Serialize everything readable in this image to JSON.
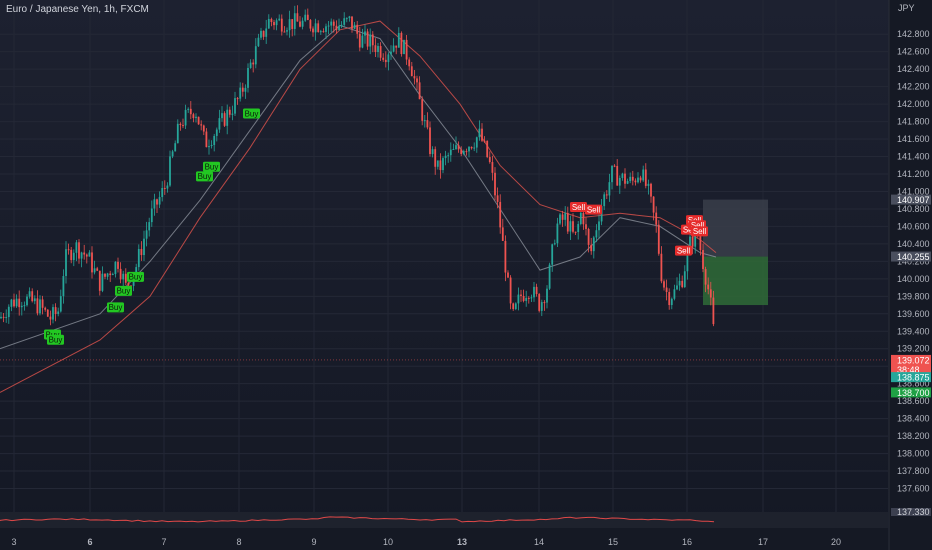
{
  "title": "Euro / Japanese Yen, 1h, FXCM",
  "currency": "JPY",
  "colors": {
    "up": "#26a69a",
    "down": "#ef5350",
    "ma_fast": "#9aa0aa",
    "ma_slow": "#d4504a",
    "buy_bg": "#22c722",
    "sell_bg": "#e52b2b",
    "target_zone": "#2f6b37",
    "stop_zone": "#3a3e4a"
  },
  "chart_data": {
    "type": "candlestick",
    "ylim": [
      137.4,
      143.1
    ],
    "y_ticks": [
      142.8,
      142.6,
      142.4,
      142.2,
      142.0,
      141.8,
      141.6,
      141.4,
      141.2,
      141.0,
      140.8,
      140.6,
      140.4,
      140.2,
      140.0,
      139.8,
      139.6,
      139.4,
      139.2,
      139.0,
      138.8,
      138.6,
      138.4,
      138.2,
      138.0,
      137.8,
      137.6
    ],
    "x_ticks": [
      {
        "label": "3",
        "bold": false
      },
      {
        "label": "6",
        "bold": true
      },
      {
        "label": "7",
        "bold": false
      },
      {
        "label": "8",
        "bold": false
      },
      {
        "label": "9",
        "bold": false
      },
      {
        "label": "10",
        "bold": false
      },
      {
        "label": "13",
        "bold": true
      },
      {
        "label": "14",
        "bold": false
      },
      {
        "label": "15",
        "bold": false
      },
      {
        "label": "16",
        "bold": false
      },
      {
        "label": "17",
        "bold": false
      },
      {
        "label": "20",
        "bold": false
      }
    ],
    "path": [
      [
        0,
        139.55
      ],
      [
        10,
        139.72
      ],
      [
        20,
        139.78
      ],
      [
        30,
        139.75
      ],
      [
        40,
        139.68
      ],
      [
        50,
        139.55
      ],
      [
        58,
        139.62
      ],
      [
        65,
        140.22
      ],
      [
        75,
        140.38
      ],
      [
        88,
        140.25
      ],
      [
        100,
        139.95
      ],
      [
        110,
        140.1
      ],
      [
        118,
        140.2
      ],
      [
        126,
        139.9
      ],
      [
        135,
        140.1
      ],
      [
        150,
        140.7
      ],
      [
        165,
        141.05
      ],
      [
        180,
        141.78
      ],
      [
        195,
        141.95
      ],
      [
        205,
        141.55
      ],
      [
        215,
        141.68
      ],
      [
        228,
        141.9
      ],
      [
        240,
        142.08
      ],
      [
        252,
        142.5
      ],
      [
        268,
        142.95
      ],
      [
        340,
        142.9
      ],
      [
        350,
        142.95
      ],
      [
        360,
        142.75
      ],
      [
        372,
        142.7
      ],
      [
        385,
        142.58
      ],
      [
        398,
        142.75
      ],
      [
        410,
        142.5
      ],
      [
        420,
        142.0
      ],
      [
        430,
        141.5
      ],
      [
        438,
        141.25
      ],
      [
        448,
        141.4
      ],
      [
        460,
        141.5
      ],
      [
        470,
        141.55
      ],
      [
        480,
        141.65
      ],
      [
        490,
        141.3
      ],
      [
        498,
        140.8
      ],
      [
        505,
        140.2
      ],
      [
        512,
        139.52
      ],
      [
        520,
        139.8
      ],
      [
        530,
        139.9
      ],
      [
        540,
        139.7
      ],
      [
        548,
        139.95
      ],
      [
        556,
        140.6
      ],
      [
        565,
        140.7
      ],
      [
        575,
        140.45
      ],
      [
        582,
        140.8
      ],
      [
        590,
        140.25
      ],
      [
        600,
        140.8
      ],
      [
        612,
        141.2
      ],
      [
        622,
        141.15
      ],
      [
        632,
        141.1
      ],
      [
        640,
        141.25
      ],
      [
        648,
        141.0
      ],
      [
        656,
        140.6
      ],
      [
        662,
        140.0
      ],
      [
        668,
        139.8
      ],
      [
        675,
        139.85
      ],
      [
        682,
        140.0
      ],
      [
        690,
        140.4
      ],
      [
        697,
        140.55
      ],
      [
        702,
        140.25
      ],
      [
        708,
        139.9
      ],
      [
        712,
        139.6
      ],
      [
        716,
        139.07
      ]
    ],
    "series": [
      {
        "name": "",
        "points": [
          [
            0,
            139.2
          ],
          [
            100,
            139.6
          ],
          [
            150,
            140.2
          ],
          [
            200,
            140.9
          ],
          [
            250,
            141.7
          ],
          [
            300,
            142.5
          ],
          [
            340,
            142.9
          ],
          [
            380,
            142.75
          ],
          [
            420,
            142.1
          ],
          [
            460,
            141.5
          ],
          [
            500,
            140.8
          ],
          [
            540,
            140.1
          ],
          [
            580,
            140.25
          ],
          [
            620,
            140.7
          ],
          [
            660,
            140.6
          ],
          [
            700,
            140.3
          ],
          [
            716,
            140.25
          ]
        ]
      },
      {
        "name": "",
        "points": [
          [
            0,
            138.7
          ],
          [
            100,
            139.3
          ],
          [
            150,
            139.8
          ],
          [
            200,
            140.7
          ],
          [
            250,
            141.5
          ],
          [
            300,
            142.4
          ],
          [
            340,
            142.85
          ],
          [
            380,
            142.95
          ],
          [
            420,
            142.55
          ],
          [
            460,
            142.0
          ],
          [
            500,
            141.3
          ],
          [
            540,
            140.85
          ],
          [
            580,
            140.7
          ],
          [
            620,
            140.75
          ],
          [
            660,
            140.7
          ],
          [
            700,
            140.45
          ],
          [
            716,
            140.3
          ]
        ]
      }
    ],
    "buy_signals": [
      {
        "x": 52,
        "y": 139.42,
        "label": "Buy"
      },
      {
        "x": 55,
        "y": 139.36,
        "label": "Buy"
      },
      {
        "x": 115,
        "y": 139.73,
        "label": "Buy"
      },
      {
        "x": 123,
        "y": 139.92,
        "label": "Buy"
      },
      {
        "x": 135,
        "y": 140.08,
        "label": "Buy"
      },
      {
        "x": 204,
        "y": 141.23,
        "label": "Buy"
      },
      {
        "x": 211,
        "y": 141.34,
        "label": "Buy"
      },
      {
        "x": 251,
        "y": 141.95,
        "label": "Buy"
      }
    ],
    "sell_signals": [
      {
        "x": 578,
        "y": 140.88,
        "label": "Sell"
      },
      {
        "x": 593,
        "y": 140.85,
        "label": "Sell"
      },
      {
        "x": 683,
        "y": 140.38,
        "label": "Sell"
      },
      {
        "x": 689,
        "y": 140.62,
        "label": "Sell"
      },
      {
        "x": 694,
        "y": 140.73,
        "label": "Sell"
      },
      {
        "x": 697,
        "y": 140.67,
        "label": "Sell"
      },
      {
        "x": 699,
        "y": 140.6,
        "label": "Sell"
      }
    ],
    "position": {
      "x_start": 703,
      "x_end": 768,
      "entry": 140.255,
      "stop": 140.907,
      "target": 139.7
    },
    "price_tags": [
      {
        "value": 140.907,
        "label": "140.907",
        "bg": "#4a4f5e"
      },
      {
        "value": 140.255,
        "label": "140.255",
        "bg": "#4a4f5e"
      },
      {
        "value": 139.072,
        "label": "139.072",
        "bg": "#ef5350",
        "sub": "38:48"
      },
      {
        "value": 138.875,
        "label": "138.875",
        "bg": "#26a69a"
      },
      {
        "value": 138.7,
        "label": "138.700",
        "bg": "#1fa145"
      }
    ],
    "current_price": 139.072
  },
  "indicator_label": "137.330"
}
